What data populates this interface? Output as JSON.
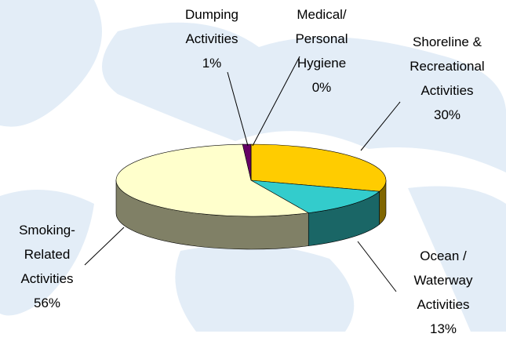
{
  "chart_data": {
    "type": "pie3d",
    "categories": [
      "Shoreline &\nRecreational\nActivities",
      "Ocean /\nWaterway\nActivities",
      "Smoking-\nRelated\nActivities",
      "Dumping\nActivities",
      "Medical/\nPersonal\nHygiene"
    ],
    "values": [
      30,
      13,
      56,
      1,
      0
    ],
    "value_labels": [
      "30%",
      "13%",
      "56%",
      "1%",
      "0%"
    ],
    "colors": [
      "#ffcc00",
      "#33cccc",
      "#ffffcc",
      "#660066",
      "#cc99ff"
    ]
  }
}
